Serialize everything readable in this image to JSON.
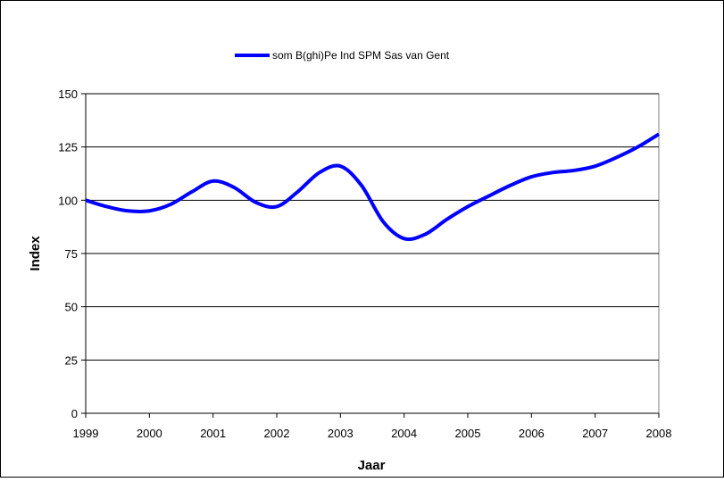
{
  "chart_data": {
    "type": "line",
    "title": "",
    "xlabel": "Jaar",
    "ylabel": "Index",
    "xlim": [
      1999,
      2008
    ],
    "ylim": [
      0,
      150
    ],
    "x_ticks": [
      "1999",
      "2000",
      "2001",
      "2002",
      "2003",
      "2004",
      "2005",
      "2006",
      "2007",
      "2008"
    ],
    "y_ticks": [
      "0",
      "25",
      "50",
      "75",
      "100",
      "125",
      "150"
    ],
    "grid": "horizontal",
    "legend_position": "top-center",
    "series": [
      {
        "name": "som B(ghi)Pe Ind SPM Sas van Gent",
        "color": "#0000ff",
        "x": [
          1999,
          1999.33,
          1999.67,
          2000,
          2000.33,
          2000.67,
          2001,
          2001.33,
          2001.67,
          2002,
          2002.33,
          2002.67,
          2003,
          2003.33,
          2003.67,
          2004,
          2004.33,
          2004.67,
          2005,
          2005.33,
          2005.67,
          2006,
          2006.33,
          2006.67,
          2007,
          2007.33,
          2007.67,
          2008
        ],
        "values": [
          100,
          97,
          95,
          95,
          98,
          104,
          109,
          106,
          99,
          97,
          104,
          113,
          116,
          107,
          90,
          82,
          84,
          91,
          97,
          102,
          107,
          111,
          113,
          114,
          116,
          120,
          125,
          131
        ]
      }
    ]
  }
}
